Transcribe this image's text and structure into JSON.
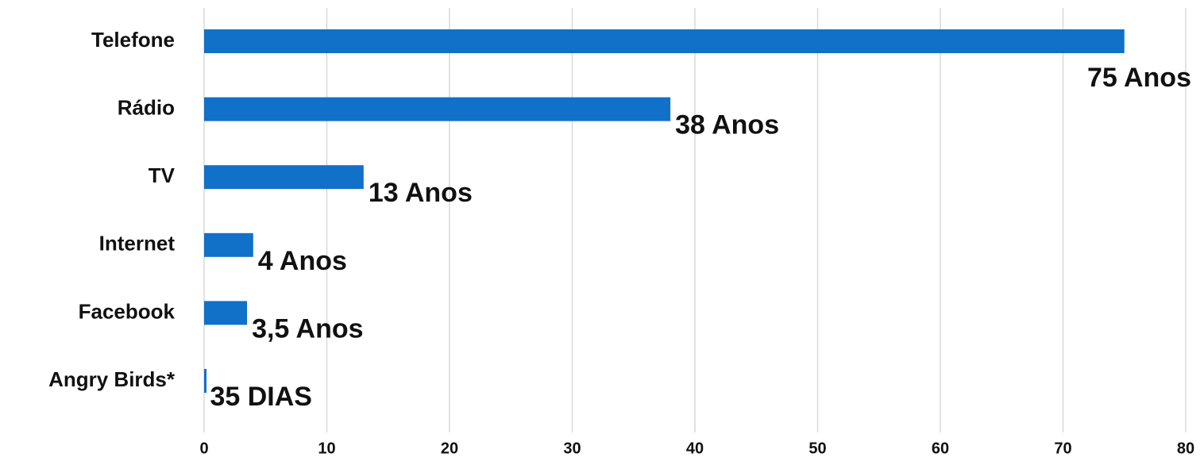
{
  "chart_data": {
    "type": "barh",
    "categories": [
      "Telefone",
      "Rádio",
      "TV",
      "Internet",
      "Facebook",
      "Angry Birds*"
    ],
    "values": [
      75,
      38,
      13,
      4,
      3.5,
      0.096
    ],
    "value_labels": [
      "75 Anos",
      "38 Anos",
      "13 Anos",
      "4 Anos",
      "3,5 Anos",
      "35 DIAS"
    ],
    "color": "#1170c8",
    "xlim": [
      0,
      80
    ],
    "xticks": [
      0,
      10,
      20,
      30,
      40,
      50,
      60,
      70,
      80
    ],
    "grid": true
  }
}
